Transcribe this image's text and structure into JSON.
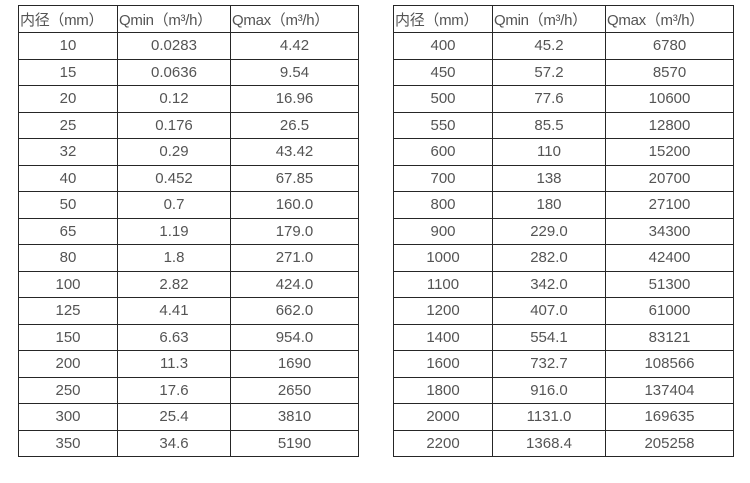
{
  "colors": {
    "background": "#ffffff",
    "border": "#262626",
    "text": "#545454"
  },
  "tables": [
    {
      "headers": [
        "内径（mm）",
        "Qmin（m³/h）",
        "Qmax（m³/h）"
      ],
      "rows": [
        [
          "10",
          "0.0283",
          "4.42"
        ],
        [
          "15",
          "0.0636",
          "9.54"
        ],
        [
          "20",
          "0.12",
          "16.96"
        ],
        [
          "25",
          "0.176",
          "26.5"
        ],
        [
          "32",
          "0.29",
          "43.42"
        ],
        [
          "40",
          "0.452",
          "67.85"
        ],
        [
          "50",
          "0.7",
          "160.0"
        ],
        [
          "65",
          "1.19",
          "179.0"
        ],
        [
          "80",
          "1.8",
          "271.0"
        ],
        [
          "100",
          "2.82",
          "424.0"
        ],
        [
          "125",
          "4.41",
          "662.0"
        ],
        [
          "150",
          "6.63",
          "954.0"
        ],
        [
          "200",
          "11.3",
          "1690"
        ],
        [
          "250",
          "17.6",
          "2650"
        ],
        [
          "300",
          "25.4",
          "3810"
        ],
        [
          "350",
          "34.6",
          "5190"
        ]
      ]
    },
    {
      "headers": [
        "内径（mm）",
        "Qmin（m³/h）",
        "Qmax（m³/h）"
      ],
      "rows": [
        [
          "400",
          "45.2",
          "6780"
        ],
        [
          "450",
          "57.2",
          "8570"
        ],
        [
          "500",
          "77.6",
          "10600"
        ],
        [
          "550",
          "85.5",
          "12800"
        ],
        [
          "600",
          "110",
          "15200"
        ],
        [
          "700",
          "138",
          "20700"
        ],
        [
          "800",
          "180",
          "27100"
        ],
        [
          "900",
          "229.0",
          "34300"
        ],
        [
          "1000",
          "282.0",
          "42400"
        ],
        [
          "1100",
          "342.0",
          "51300"
        ],
        [
          "1200",
          "407.0",
          "61000"
        ],
        [
          "1400",
          "554.1",
          "83121"
        ],
        [
          "1600",
          "732.7",
          "108566"
        ],
        [
          "1800",
          "916.0",
          "137404"
        ],
        [
          "2000",
          "1131.0",
          "169635"
        ],
        [
          "2200",
          "1368.4",
          "205258"
        ]
      ]
    }
  ]
}
